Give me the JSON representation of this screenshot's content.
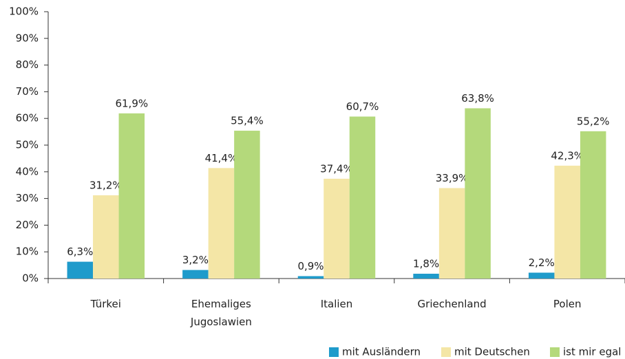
{
  "chart_data": {
    "type": "bar",
    "categories": [
      "Türkei",
      "Ehemaliges Jugoslawien",
      "Italien",
      "Griechenland",
      "Polen"
    ],
    "series": [
      {
        "name": "mit Ausländern",
        "color": "#1f9bcb",
        "values": [
          6.3,
          3.2,
          0.9,
          1.8,
          2.2
        ],
        "value_labels": [
          "6,3%",
          "3,2%",
          "0,9%",
          "1,8%",
          "2,2%"
        ]
      },
      {
        "name": "mit Deutschen",
        "color": "#f4e6a6",
        "values": [
          31.2,
          41.4,
          37.4,
          33.9,
          42.3
        ],
        "value_labels": [
          "31,2%",
          "41,4%",
          "37,4%",
          "33,9%",
          "42,3%"
        ]
      },
      {
        "name": "ist mir egal",
        "color": "#b4d97b",
        "values": [
          61.9,
          55.4,
          60.7,
          63.8,
          55.2
        ],
        "value_labels": [
          "61,9%",
          "55,4%",
          "60,7%",
          "63,8%",
          "55,2%"
        ]
      }
    ],
    "ylim": [
      0,
      100
    ],
    "yticks": [
      {
        "value": 0,
        "label": "0%"
      },
      {
        "value": 10,
        "label": "10%"
      },
      {
        "value": 20,
        "label": "20%"
      },
      {
        "value": 30,
        "label": "30%"
      },
      {
        "value": 40,
        "label": "40%"
      },
      {
        "value": 50,
        "label": "50%"
      },
      {
        "value": 60,
        "label": "60%"
      },
      {
        "value": 70,
        "label": "70%"
      },
      {
        "value": 80,
        "label": "80%"
      },
      {
        "value": 90,
        "label": "90%"
      },
      {
        "value": 100,
        "label": "100%"
      }
    ],
    "grid": false,
    "legend": "bottom-right"
  }
}
